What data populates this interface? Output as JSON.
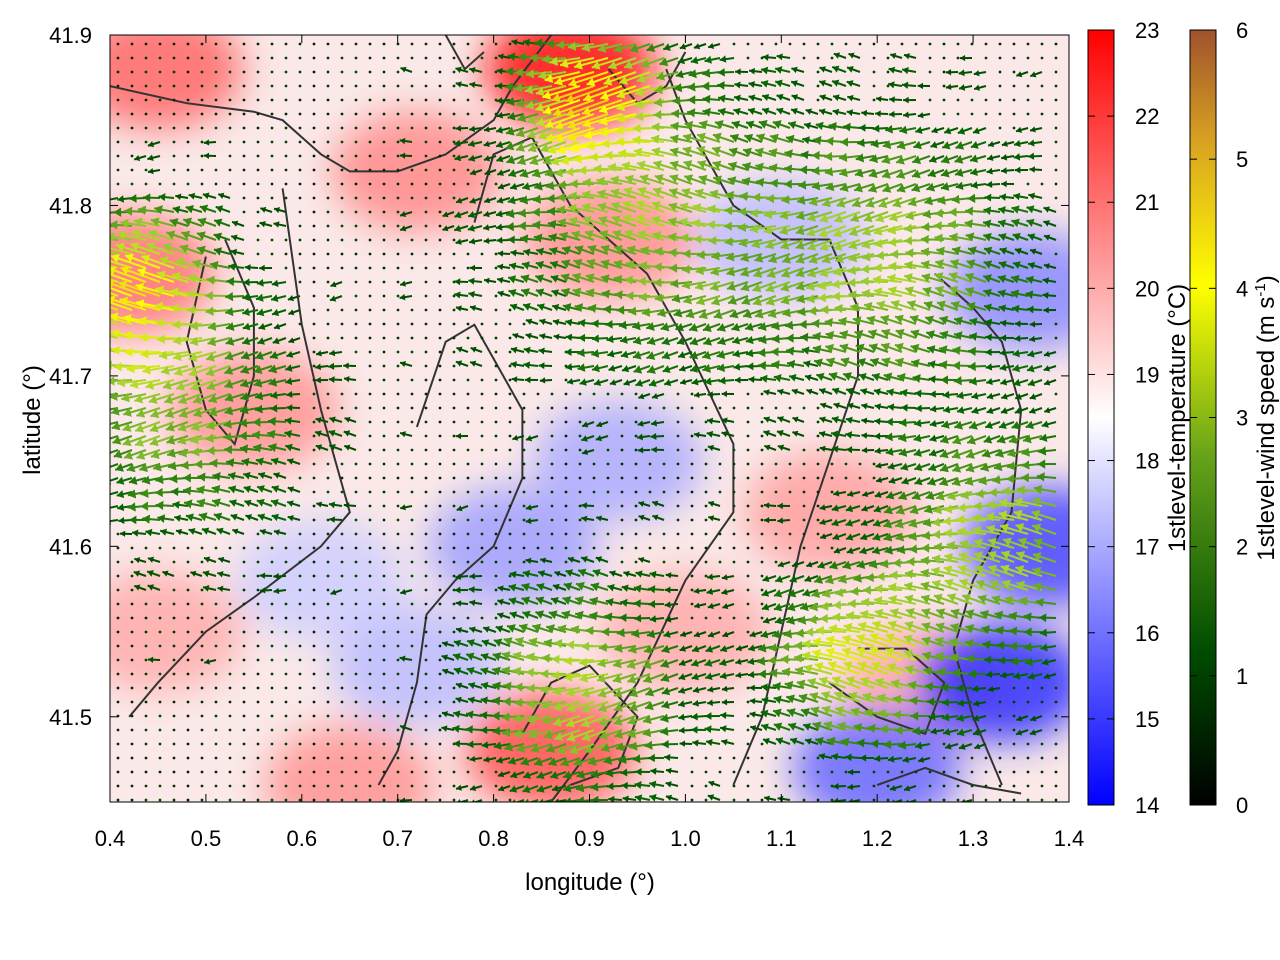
{
  "chart_data": {
    "type": "heatmap",
    "title": "",
    "xlabel": "longitude (°)",
    "ylabel": "latitude (°)",
    "xlim": [
      0.4,
      1.4
    ],
    "ylim": [
      41.45,
      41.9
    ],
    "xticks": [
      "0.4",
      "0.5",
      "0.6",
      "0.7",
      "0.8",
      "0.9",
      "1.0",
      "1.1",
      "1.2",
      "1.3",
      "1.4"
    ],
    "yticks": [
      "41.5",
      "41.6",
      "41.7",
      "41.8",
      "41.9"
    ],
    "grid": false,
    "temperature_colorbar": {
      "label": "1stlevel-temperature (°C)",
      "range": [
        14,
        23
      ],
      "ticks": [
        "14",
        "15",
        "16",
        "17",
        "18",
        "19",
        "20",
        "21",
        "22",
        "23"
      ],
      "colors": [
        "#0000ff",
        "#ffffff",
        "#ff0000"
      ]
    },
    "wind_colorbar": {
      "label_main": "1stlevel-wind speed (m s",
      "label_sup": "-1",
      "label_end": ")",
      "range": [
        0,
        6
      ],
      "ticks": [
        "0",
        "1",
        "2",
        "3",
        "4",
        "5",
        "6"
      ],
      "colors": [
        "#000000",
        "#006400",
        "#9acd32",
        "#ffff00",
        "#daa520",
        "#a0522d"
      ]
    },
    "temperature_hotspots": [
      {
        "lon": 0.88,
        "lat": 41.88,
        "value": 22.8
      },
      {
        "lon": 0.45,
        "lat": 41.88,
        "value": 21.2
      },
      {
        "lon": 0.42,
        "lat": 41.76,
        "value": 21.0
      },
      {
        "lon": 0.72,
        "lat": 41.82,
        "value": 20.6
      },
      {
        "lon": 0.92,
        "lat": 41.78,
        "value": 20.5
      },
      {
        "lon": 0.55,
        "lat": 41.68,
        "value": 20.4
      },
      {
        "lon": 0.86,
        "lat": 41.48,
        "value": 21.6
      },
      {
        "lon": 1.15,
        "lat": 41.62,
        "value": 20.2
      },
      {
        "lon": 1.25,
        "lat": 41.52,
        "value": 20.0
      },
      {
        "lon": 0.45,
        "lat": 41.55,
        "value": 20.0
      },
      {
        "lon": 0.65,
        "lat": 41.46,
        "value": 20.4
      },
      {
        "lon": 1.0,
        "lat": 41.55,
        "value": 20.0
      },
      {
        "lon": 1.33,
        "lat": 41.52,
        "value": 14.8
      },
      {
        "lon": 1.38,
        "lat": 41.6,
        "value": 15.2
      },
      {
        "lon": 1.2,
        "lat": 41.47,
        "value": 15.8
      },
      {
        "lon": 0.82,
        "lat": 41.6,
        "value": 16.8
      },
      {
        "lon": 0.93,
        "lat": 41.65,
        "value": 17.0
      },
      {
        "lon": 0.72,
        "lat": 41.53,
        "value": 17.3
      },
      {
        "lon": 1.36,
        "lat": 41.75,
        "value": 16.4
      },
      {
        "lon": 1.1,
        "lat": 41.78,
        "value": 17.3
      },
      {
        "lon": 0.62,
        "lat": 41.58,
        "value": 17.6
      }
    ],
    "contours": [
      [
        [
          0.4,
          41.87
        ],
        [
          0.48,
          41.86
        ],
        [
          0.55,
          41.855
        ],
        [
          0.58,
          41.85
        ],
        [
          0.62,
          41.83
        ],
        [
          0.65,
          41.82
        ],
        [
          0.7,
          41.82
        ],
        [
          0.75,
          41.83
        ],
        [
          0.8,
          41.85
        ],
        [
          0.82,
          41.87
        ],
        [
          0.86,
          41.9
        ]
      ],
      [
        [
          0.78,
          41.79
        ],
        [
          0.8,
          41.83
        ],
        [
          0.84,
          41.84
        ],
        [
          0.88,
          41.8
        ],
        [
          0.92,
          41.78
        ],
        [
          0.96,
          41.76
        ],
        [
          1.0,
          41.72
        ],
        [
          1.05,
          41.66
        ],
        [
          1.05,
          41.62
        ],
        [
          1.0,
          41.58
        ],
        [
          0.95,
          41.52
        ],
        [
          0.9,
          41.48
        ],
        [
          0.86,
          41.45
        ]
      ],
      [
        [
          0.58,
          41.81
        ],
        [
          0.6,
          41.73
        ],
        [
          0.62,
          41.68
        ],
        [
          0.65,
          41.62
        ],
        [
          0.62,
          41.6
        ],
        [
          0.55,
          41.57
        ],
        [
          0.5,
          41.55
        ],
        [
          0.45,
          41.52
        ],
        [
          0.42,
          41.5
        ]
      ],
      [
        [
          0.72,
          41.67
        ],
        [
          0.75,
          41.72
        ],
        [
          0.78,
          41.73
        ],
        [
          0.8,
          41.71
        ],
        [
          0.83,
          41.68
        ],
        [
          0.83,
          41.64
        ],
        [
          0.8,
          41.6
        ],
        [
          0.76,
          41.58
        ],
        [
          0.73,
          41.56
        ],
        [
          0.72,
          41.52
        ],
        [
          0.7,
          41.48
        ],
        [
          0.68,
          41.46
        ]
      ],
      [
        [
          0.98,
          41.88
        ],
        [
          1.0,
          41.85
        ],
        [
          1.02,
          41.83
        ],
        [
          1.05,
          41.8
        ],
        [
          1.1,
          41.78
        ],
        [
          1.15,
          41.78
        ],
        [
          1.18,
          41.74
        ],
        [
          1.18,
          41.7
        ],
        [
          1.15,
          41.65
        ],
        [
          1.12,
          41.6
        ],
        [
          1.1,
          41.55
        ],
        [
          1.08,
          41.5
        ],
        [
          1.05,
          41.46
        ]
      ],
      [
        [
          1.26,
          41.76
        ],
        [
          1.3,
          41.74
        ],
        [
          1.33,
          41.72
        ],
        [
          1.35,
          41.68
        ],
        [
          1.34,
          41.62
        ],
        [
          1.3,
          41.58
        ],
        [
          1.28,
          41.54
        ],
        [
          1.3,
          41.5
        ],
        [
          1.33,
          41.46
        ]
      ],
      [
        [
          0.5,
          41.77
        ],
        [
          0.48,
          41.72
        ],
        [
          0.5,
          41.68
        ],
        [
          0.53,
          41.66
        ],
        [
          0.55,
          41.7
        ],
        [
          0.55,
          41.74
        ],
        [
          0.52,
          41.78
        ]
      ],
      [
        [
          0.83,
          41.49
        ],
        [
          0.86,
          41.52
        ],
        [
          0.9,
          41.53
        ],
        [
          0.95,
          41.5
        ],
        [
          0.93,
          41.47
        ],
        [
          0.88,
          41.46
        ]
      ],
      [
        [
          1.15,
          41.52
        ],
        [
          1.2,
          41.5
        ],
        [
          1.25,
          41.49
        ],
        [
          1.27,
          41.52
        ],
        [
          1.23,
          41.54
        ],
        [
          1.18,
          41.54
        ]
      ],
      [
        [
          0.92,
          41.88
        ],
        [
          0.95,
          41.86
        ],
        [
          0.98,
          41.87
        ],
        [
          1.0,
          41.89
        ]
      ],
      [
        [
          1.2,
          41.46
        ],
        [
          1.25,
          41.47
        ],
        [
          1.3,
          41.46
        ],
        [
          1.35,
          41.455
        ]
      ],
      [
        [
          0.75,
          41.9
        ],
        [
          0.77,
          41.88
        ],
        [
          0.79,
          41.89
        ]
      ]
    ]
  }
}
